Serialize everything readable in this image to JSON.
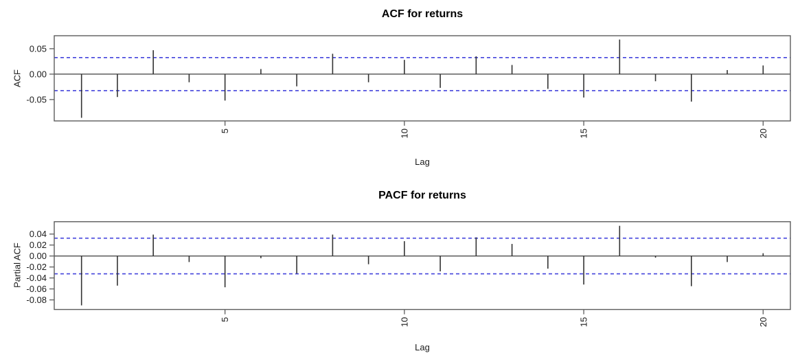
{
  "page": {
    "background_color": "#ffffff"
  },
  "chart_data": [
    {
      "type": "bar",
      "subtype": "acf-stem-plot",
      "title": "ACF for returns",
      "xlabel": "Lag",
      "ylabel": "ACF",
      "x": [
        1,
        2,
        3,
        4,
        5,
        6,
        7,
        8,
        9,
        10,
        11,
        12,
        13,
        14,
        15,
        16,
        17,
        18,
        19,
        20
      ],
      "values": [
        -0.086,
        -0.045,
        0.047,
        -0.016,
        -0.052,
        0.01,
        -0.024,
        0.04,
        -0.016,
        0.028,
        -0.027,
        0.035,
        0.018,
        -0.029,
        -0.046,
        0.068,
        -0.014,
        -0.054,
        0.008,
        0.017
      ],
      "conf_bound": 0.0325,
      "conf_line_style": "dashed",
      "yticks": [
        {
          "value": 0.05,
          "label": "0.05"
        },
        {
          "value": 0.0,
          "label": "0.00"
        },
        {
          "value": -0.05,
          "label": "-0.05"
        }
      ],
      "xticks": [
        {
          "value": 5,
          "label": "5"
        },
        {
          "value": 10,
          "label": "10"
        },
        {
          "value": 15,
          "label": "15"
        },
        {
          "value": 20,
          "label": "20"
        }
      ],
      "ylim": [
        -0.092,
        0.0755
      ],
      "xlim": [
        0.24,
        20.76
      ],
      "grid": false,
      "legend": "none",
      "colors": {
        "bar": "#333333",
        "frame": "#5c5c5c",
        "zero_line": "#3d3d3d",
        "tick_text": "#1a1a1a",
        "conf_line": "#4343dc"
      }
    },
    {
      "type": "bar",
      "subtype": "acf-stem-plot",
      "title": "PACF for returns",
      "xlabel": "Lag",
      "ylabel": "Partial ACF",
      "x": [
        1,
        2,
        3,
        4,
        5,
        6,
        7,
        8,
        9,
        10,
        11,
        12,
        13,
        14,
        15,
        16,
        17,
        18,
        19,
        20
      ],
      "values": [
        -0.09,
        -0.054,
        0.039,
        -0.011,
        -0.057,
        -0.004,
        -0.032,
        0.039,
        -0.015,
        0.027,
        -0.028,
        0.034,
        0.022,
        -0.023,
        -0.052,
        0.055,
        -0.003,
        -0.055,
        -0.011,
        0.005
      ],
      "conf_bound": 0.0325,
      "conf_line_style": "dashed",
      "yticks": [
        {
          "value": 0.04,
          "label": "0.04"
        },
        {
          "value": 0.02,
          "label": "0.02"
        },
        {
          "value": 0.0,
          "label": "0.00"
        },
        {
          "value": -0.02,
          "label": "-0.02"
        },
        {
          "value": -0.04,
          "label": "-0.04"
        },
        {
          "value": -0.06,
          "label": "-0.06"
        },
        {
          "value": -0.08,
          "label": "-0.08"
        }
      ],
      "xticks": [
        {
          "value": 5,
          "label": "5"
        },
        {
          "value": 10,
          "label": "10"
        },
        {
          "value": 15,
          "label": "15"
        },
        {
          "value": 20,
          "label": "20"
        }
      ],
      "ylim": [
        -0.0975,
        0.0625
      ],
      "xlim": [
        0.24,
        20.76
      ],
      "grid": false,
      "legend": "none",
      "colors": {
        "bar": "#333333",
        "frame": "#5c5c5c",
        "zero_line": "#3d3d3d",
        "tick_text": "#1a1a1a",
        "conf_line": "#4343dc"
      }
    }
  ]
}
